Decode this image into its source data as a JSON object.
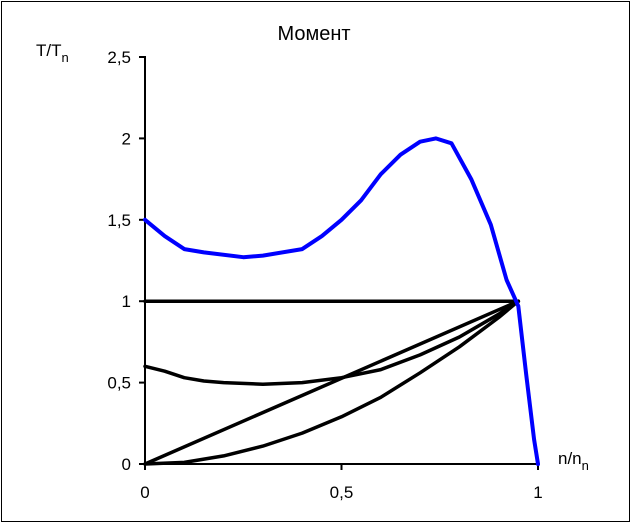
{
  "chart_data": {
    "type": "line",
    "title": "Момент",
    "ylabel": "T/T",
    "ylabel_sub": "n",
    "xlabel": "n/n",
    "xlabel_sub": "n",
    "xlim": [
      0,
      1
    ],
    "ylim": [
      0,
      2.5
    ],
    "x_ticks": [
      {
        "value": 0,
        "label": "0"
      },
      {
        "value": 0.5,
        "label": "0,5"
      },
      {
        "value": 1,
        "label": "1"
      }
    ],
    "y_ticks": [
      {
        "value": 0,
        "label": "0"
      },
      {
        "value": 0.5,
        "label": "0,5"
      },
      {
        "value": 1,
        "label": "1"
      },
      {
        "value": 1.5,
        "label": "1,5"
      },
      {
        "value": 2,
        "label": "2"
      },
      {
        "value": 2.5,
        "label": "2,5"
      }
    ],
    "grid": false,
    "legend": "none",
    "series": [
      {
        "color": "#0000ff",
        "points": [
          [
            0,
            1.5
          ],
          [
            0.05,
            1.4
          ],
          [
            0.1,
            1.32
          ],
          [
            0.15,
            1.3
          ],
          [
            0.25,
            1.27
          ],
          [
            0.3,
            1.28
          ],
          [
            0.4,
            1.32
          ],
          [
            0.45,
            1.4
          ],
          [
            0.5,
            1.5
          ],
          [
            0.55,
            1.62
          ],
          [
            0.6,
            1.78
          ],
          [
            0.65,
            1.9
          ],
          [
            0.7,
            1.98
          ],
          [
            0.74,
            2.0
          ],
          [
            0.78,
            1.97
          ],
          [
            0.83,
            1.75
          ],
          [
            0.88,
            1.47
          ],
          [
            0.92,
            1.13
          ],
          [
            0.95,
            0.97
          ],
          [
            0.97,
            0.55
          ],
          [
            0.99,
            0.15
          ],
          [
            1.0,
            0
          ]
        ]
      },
      {
        "color": "#000000",
        "points": [
          [
            0,
            1.0
          ],
          [
            0.95,
            1.0
          ]
        ]
      },
      {
        "color": "#000000",
        "points": [
          [
            0,
            0.6
          ],
          [
            0.05,
            0.57
          ],
          [
            0.1,
            0.53
          ],
          [
            0.15,
            0.51
          ],
          [
            0.2,
            0.5
          ],
          [
            0.3,
            0.49
          ],
          [
            0.4,
            0.5
          ],
          [
            0.5,
            0.53
          ],
          [
            0.6,
            0.58
          ],
          [
            0.7,
            0.67
          ],
          [
            0.8,
            0.78
          ],
          [
            0.9,
            0.92
          ],
          [
            0.95,
            1.0
          ]
        ]
      },
      {
        "color": "#000000",
        "points": [
          [
            0,
            0
          ],
          [
            0.95,
            1.0
          ]
        ]
      },
      {
        "color": "#000000",
        "points": [
          [
            0,
            0
          ],
          [
            0.1,
            0.01
          ],
          [
            0.2,
            0.05
          ],
          [
            0.3,
            0.11
          ],
          [
            0.4,
            0.19
          ],
          [
            0.5,
            0.29
          ],
          [
            0.6,
            0.41
          ],
          [
            0.7,
            0.56
          ],
          [
            0.8,
            0.72
          ],
          [
            0.9,
            0.9
          ],
          [
            0.95,
            1.0
          ]
        ]
      }
    ]
  }
}
